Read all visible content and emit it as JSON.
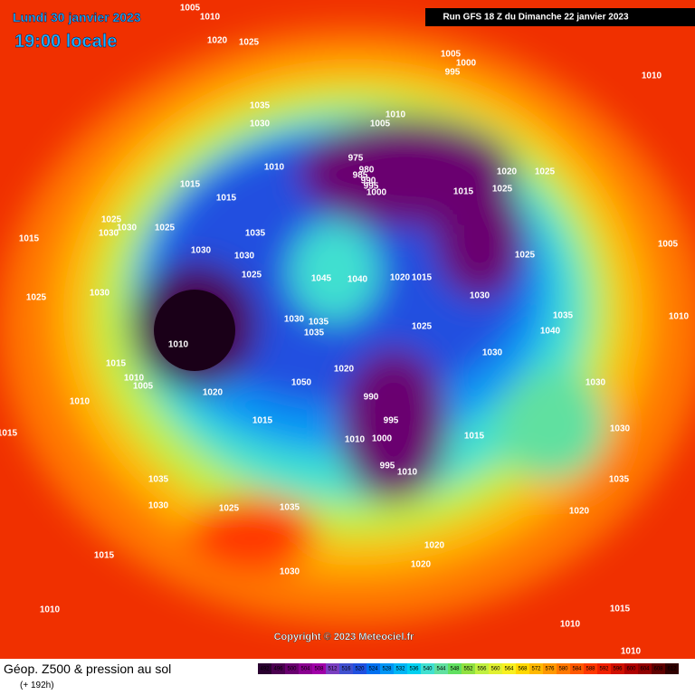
{
  "header": {
    "date": "Lundi 30 janvier 2023",
    "time": "19:00 locale",
    "run": "Run GFS 18 Z du Dimanche 22 janvier 2023"
  },
  "isobar_labels": [
    1005,
    1010,
    1020,
    1025,
    1005,
    1000,
    995,
    1010,
    1035,
    1010,
    1030,
    1005,
    975,
    980,
    985,
    990,
    995,
    1000,
    1010,
    1020,
    1025,
    1015,
    1015,
    1015,
    1025,
    1025,
    1030,
    1030,
    1025,
    1035,
    1015,
    1030,
    1030,
    1005,
    1025,
    1025,
    1045,
    1040,
    1020,
    1015,
    1025,
    1030,
    1030,
    1010,
    1030,
    1035,
    1035,
    1010,
    1025,
    1035,
    1040,
    1030,
    1015,
    1020,
    1010,
    1005,
    1050,
    1020,
    1030,
    990,
    995,
    1010,
    1000,
    1010,
    1015,
    1015,
    1015,
    1030,
    995,
    1010,
    1035,
    1035,
    1030,
    1025,
    1035,
    1020,
    1015,
    1020,
    1020,
    1030,
    1010,
    1015,
    1010,
    1010
  ],
  "copyright": "Copyright © 2023 Meteociel.fr",
  "footer": {
    "title": "Géop. Z500 & pression au sol",
    "lead": "(+ 192h)"
  },
  "scale": {
    "values": [
      492,
      496,
      500,
      504,
      508,
      512,
      516,
      520,
      524,
      528,
      532,
      536,
      540,
      544,
      548,
      552,
      556,
      560,
      564,
      568,
      572,
      576,
      580,
      584,
      588,
      592,
      596,
      600,
      604,
      608,
      612
    ],
    "colors": [
      "#2a0030",
      "#4b0050",
      "#6a0070",
      "#8a0090",
      "#a000a8",
      "#7a3fc0",
      "#4050d0",
      "#2050e0",
      "#0070f0",
      "#0095f5",
      "#00b5f5",
      "#00d0f0",
      "#40e0d0",
      "#60e0a0",
      "#60e060",
      "#90e040",
      "#c0f040",
      "#e0f030",
      "#f8f020",
      "#ffd800",
      "#ffb800",
      "#ff9800",
      "#ff7800",
      "#ff5800",
      "#ff3800",
      "#f02000",
      "#d01000",
      "#b00000",
      "#900000",
      "#600000",
      "#300000"
    ]
  }
}
